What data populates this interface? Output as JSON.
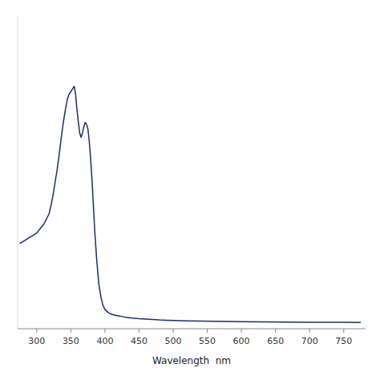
{
  "chart_data": {
    "type": "line",
    "xlabel": "Wavelength  nm",
    "color": "#1c2d6b",
    "xlim": [
      272,
      782
    ],
    "ylim": [
      -0.02,
      1.45
    ],
    "xticks": [
      300,
      350,
      400,
      450,
      500,
      550,
      600,
      650,
      700,
      750
    ],
    "tick_labels": "x",
    "x": [
      275,
      280,
      285,
      290,
      295,
      300,
      305,
      310,
      315,
      318,
      321,
      324,
      327,
      330,
      333,
      336,
      339,
      342,
      345,
      347,
      349,
      351,
      353,
      355,
      357,
      359,
      361,
      363,
      365,
      367,
      369,
      371,
      373,
      375,
      377,
      379,
      381,
      383,
      385,
      388,
      391,
      394,
      397,
      400,
      405,
      410,
      415,
      420,
      425,
      430,
      440,
      450,
      460,
      470,
      480,
      490,
      500,
      520,
      540,
      560,
      580,
      600,
      630,
      660,
      700,
      740,
      775
    ],
    "values": [
      0.38,
      0.39,
      0.4,
      0.41,
      0.42,
      0.43,
      0.45,
      0.47,
      0.5,
      0.52,
      0.56,
      0.61,
      0.67,
      0.73,
      0.8,
      0.88,
      0.95,
      1.01,
      1.06,
      1.08,
      1.09,
      1.1,
      1.11,
      1.12,
      1.08,
      1.01,
      0.95,
      0.9,
      0.88,
      0.9,
      0.93,
      0.95,
      0.94,
      0.92,
      0.86,
      0.78,
      0.68,
      0.56,
      0.44,
      0.3,
      0.19,
      0.13,
      0.09,
      0.07,
      0.055,
      0.048,
      0.043,
      0.04,
      0.037,
      0.034,
      0.03,
      0.027,
      0.025,
      0.023,
      0.021,
      0.02,
      0.019,
      0.017,
      0.016,
      0.015,
      0.014,
      0.013,
      0.012,
      0.011,
      0.01,
      0.01,
      0.009
    ]
  }
}
